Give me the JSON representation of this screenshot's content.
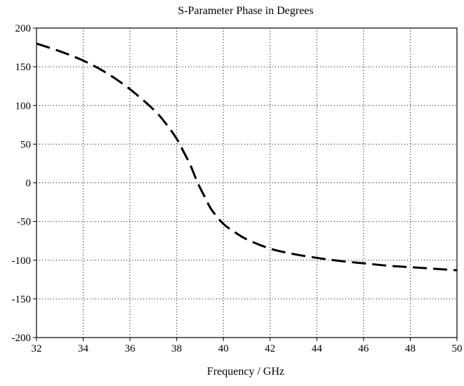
{
  "chart_data": {
    "type": "line",
    "title": "S-Parameter Phase in Degrees",
    "xlabel": "Frequency / GHz",
    "ylabel": "",
    "xlim": [
      32,
      50
    ],
    "ylim": [
      -200,
      200
    ],
    "xticks": [
      32,
      34,
      36,
      38,
      40,
      42,
      44,
      46,
      48,
      50
    ],
    "yticks": [
      200,
      150,
      100,
      50,
      0,
      -50,
      -100,
      -150,
      -200
    ],
    "grid": true,
    "line_style": "dashed",
    "series": [
      {
        "x": [
          32,
          33,
          34,
          35,
          36,
          37,
          37.5,
          38,
          38.3,
          38.6,
          38.9,
          39.2,
          39.5,
          40,
          40.5,
          41,
          42,
          43,
          44,
          45,
          46,
          47,
          48,
          49,
          50
        ],
        "y": [
          180,
          170,
          158,
          142,
          121,
          95,
          78,
          57,
          40,
          22,
          0,
          -18,
          -35,
          -53,
          -64,
          -73,
          -85,
          -92,
          -97,
          -101,
          -104,
          -107,
          -109,
          -111,
          -113
        ]
      }
    ]
  }
}
